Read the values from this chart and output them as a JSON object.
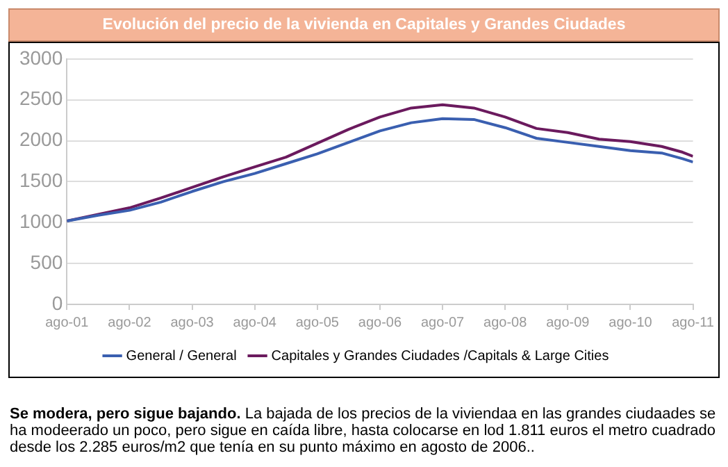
{
  "chart_data": {
    "type": "line",
    "title": "Evolución del precio de la vivienda en Capitales y Grandes Ciudades",
    "annotations": [
      "Se modera, pero sigue bajando.",
      "La bajada de los precios de la viviendaa en las grandes ciudaades se ha modeerado un poco, pero sigue en caída libre, hasta colocarse en lod 1.811 euros el metro cuadrado desde los 2.285 euros/m2 que tenía en su punto máximo en agosto de 2006.."
    ],
    "x": [
      "2001-08",
      "2002-02",
      "2002-08",
      "2003-02",
      "2003-08",
      "2004-02",
      "2004-08",
      "2005-02",
      "2005-08",
      "2006-02",
      "2006-08",
      "2007-02",
      "2007-08",
      "2008-02",
      "2008-08",
      "2009-02",
      "2009-08",
      "2010-02",
      "2010-08",
      "2011-02",
      "2011-06",
      "2011-08"
    ],
    "series": [
      {
        "name": "General / General",
        "color": "#3a5fb0",
        "values": [
          1020,
          1090,
          1150,
          1250,
          1380,
          1500,
          1600,
          1720,
          1840,
          1980,
          2120,
          2220,
          2270,
          2260,
          2160,
          2030,
          1980,
          1930,
          1880,
          1850,
          1780,
          1740
        ]
      },
      {
        "name": "Capitales y Grandes Ciudades /Capitals & Large Cities",
        "color": "#6b1a5e",
        "values": [
          1020,
          1100,
          1180,
          1300,
          1430,
          1560,
          1680,
          1800,
          1970,
          2140,
          2290,
          2400,
          2440,
          2400,
          2290,
          2150,
          2100,
          2020,
          1990,
          1930,
          1860,
          1810
        ]
      }
    ],
    "xlim": [
      "2001-08",
      "2011-08"
    ],
    "xticks": [
      {
        "value": "2001-08",
        "label": "ago-01"
      },
      {
        "value": "2002-08",
        "label": "ago-02"
      },
      {
        "value": "2003-08",
        "label": "ago-03"
      },
      {
        "value": "2004-08",
        "label": "ago-04"
      },
      {
        "value": "2005-08",
        "label": "ago-05"
      },
      {
        "value": "2006-08",
        "label": "ago-06"
      },
      {
        "value": "2007-08",
        "label": "ago-07"
      },
      {
        "value": "2008-08",
        "label": "ago-08"
      },
      {
        "value": "2009-08",
        "label": "ago-09"
      },
      {
        "value": "2010-08",
        "label": "ago-10"
      },
      {
        "value": "2011-08",
        "label": "ago-11"
      }
    ],
    "ylim": [
      0,
      3000
    ],
    "yticks": [
      0,
      500,
      1000,
      1500,
      2000,
      2500,
      3000
    ],
    "grid": "y",
    "legend": "bottom",
    "marker": "none",
    "line_style": "solid"
  }
}
